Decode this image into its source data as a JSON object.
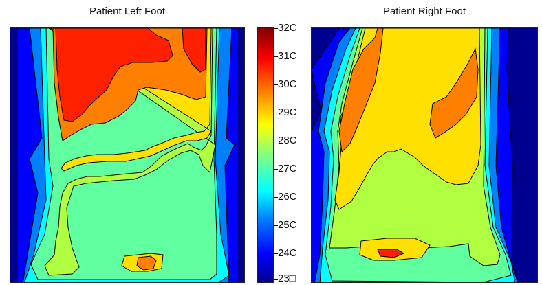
{
  "chart_data": [
    {
      "type": "heatmap",
      "title": "Patient Left Foot",
      "scale": {
        "min": 23,
        "max": 32,
        "unit": "C"
      }
    },
    {
      "type": "heatmap",
      "title": "Patient Right Foot",
      "scale": {
        "min": 23,
        "max": 32,
        "unit": "C"
      }
    }
  ],
  "colorbar": {
    "ticks": [
      {
        "value": 32,
        "label": "32C"
      },
      {
        "value": 31,
        "label": "31C"
      },
      {
        "value": 30,
        "label": "30C"
      },
      {
        "value": 29,
        "label": "29C"
      },
      {
        "value": 28,
        "label": "28C"
      },
      {
        "value": 27,
        "label": "27C"
      },
      {
        "value": 26,
        "label": "26C"
      },
      {
        "value": 25,
        "label": "25C"
      },
      {
        "value": 24,
        "label": "24C"
      },
      {
        "value": 23,
        "label": "23□"
      }
    ],
    "colors": {
      "23": "#00008f",
      "24": "#0000ff",
      "25": "#0080ff",
      "26": "#00ffff",
      "27": "#60ff9f",
      "28": "#b0ff40",
      "29": "#ffe000",
      "30": "#ff8000",
      "31": "#ff2000",
      "32": "#a00000"
    }
  }
}
